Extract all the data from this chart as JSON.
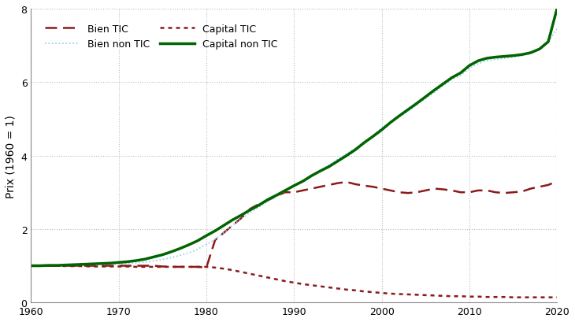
{
  "years": [
    1960,
    1961,
    1962,
    1963,
    1964,
    1965,
    1966,
    1967,
    1968,
    1969,
    1970,
    1971,
    1972,
    1973,
    1974,
    1975,
    1976,
    1977,
    1978,
    1979,
    1980,
    1981,
    1982,
    1983,
    1984,
    1985,
    1986,
    1987,
    1988,
    1989,
    1990,
    1991,
    1992,
    1993,
    1994,
    1995,
    1996,
    1997,
    1998,
    1999,
    2000,
    2001,
    2002,
    2003,
    2004,
    2005,
    2006,
    2007,
    2008,
    2009,
    2010,
    2011,
    2012,
    2013,
    2014,
    2015,
    2016,
    2017,
    2018,
    2019,
    2020
  ],
  "bien_TIC": [
    1.0,
    1.0,
    1.0,
    1.0,
    1.0,
    1.0,
    1.0,
    1.0,
    1.0,
    1.0,
    1.0,
    1.0,
    1.0,
    1.0,
    1.0,
    0.98,
    0.97,
    0.97,
    0.97,
    0.97,
    0.95,
    1.7,
    1.9,
    2.1,
    2.3,
    2.55,
    2.68,
    2.78,
    2.9,
    3.0,
    3.0,
    3.05,
    3.1,
    3.15,
    3.2,
    3.25,
    3.28,
    3.22,
    3.18,
    3.15,
    3.1,
    3.05,
    3.0,
    2.98,
    3.0,
    3.05,
    3.1,
    3.08,
    3.05,
    3.0,
    3.0,
    3.05,
    3.05,
    3.0,
    2.98,
    3.0,
    3.02,
    3.1,
    3.15,
    3.2,
    3.3
  ],
  "bien_non_TIC": [
    1.0,
    1.0,
    1.01,
    1.01,
    1.01,
    1.02,
    1.02,
    1.02,
    1.03,
    1.04,
    1.05,
    1.06,
    1.08,
    1.1,
    1.13,
    1.17,
    1.22,
    1.28,
    1.35,
    1.45,
    1.58,
    1.72,
    1.9,
    2.1,
    2.28,
    2.45,
    2.6,
    2.75,
    2.88,
    3.02,
    3.18,
    3.32,
    3.48,
    3.6,
    3.75,
    3.9,
    4.05,
    4.2,
    4.38,
    4.55,
    4.75,
    4.9,
    5.05,
    5.2,
    5.38,
    5.55,
    5.72,
    5.9,
    6.08,
    6.18,
    6.38,
    6.5,
    6.58,
    6.62,
    6.65,
    6.68,
    6.72,
    6.78,
    6.9,
    7.1,
    7.45
  ],
  "capital_TIC": [
    1.0,
    1.0,
    1.0,
    1.0,
    0.99,
    0.99,
    0.99,
    0.98,
    0.98,
    0.98,
    0.98,
    0.98,
    0.97,
    0.97,
    0.97,
    0.97,
    0.97,
    0.97,
    0.97,
    0.97,
    0.97,
    0.95,
    0.92,
    0.88,
    0.83,
    0.78,
    0.73,
    0.68,
    0.63,
    0.58,
    0.54,
    0.5,
    0.47,
    0.44,
    0.41,
    0.38,
    0.35,
    0.33,
    0.3,
    0.28,
    0.26,
    0.24,
    0.23,
    0.22,
    0.21,
    0.2,
    0.19,
    0.18,
    0.17,
    0.17,
    0.16,
    0.16,
    0.15,
    0.15,
    0.15,
    0.14,
    0.14,
    0.14,
    0.14,
    0.14,
    0.14
  ],
  "capital_non_TIC": [
    1.0,
    1.0,
    1.01,
    1.01,
    1.02,
    1.03,
    1.04,
    1.05,
    1.06,
    1.07,
    1.09,
    1.11,
    1.14,
    1.18,
    1.24,
    1.3,
    1.38,
    1.47,
    1.57,
    1.68,
    1.82,
    1.95,
    2.1,
    2.25,
    2.38,
    2.52,
    2.65,
    2.8,
    2.92,
    3.05,
    3.18,
    3.3,
    3.45,
    3.58,
    3.7,
    3.85,
    4.0,
    4.16,
    4.35,
    4.52,
    4.7,
    4.9,
    5.08,
    5.25,
    5.42,
    5.6,
    5.78,
    5.95,
    6.12,
    6.25,
    6.45,
    6.58,
    6.65,
    6.68,
    6.7,
    6.72,
    6.75,
    6.8,
    6.9,
    7.1,
    8.0
  ],
  "color_bien_TIC": "#8B1A1A",
  "color_bien_non_TIC": "#87CEEB",
  "color_capital_TIC": "#8B1A1A",
  "color_capital_non_TIC": "#006400",
  "ylabel": "Prix (1960 = 1)",
  "xlim": [
    1960,
    2020
  ],
  "ylim": [
    0,
    8
  ],
  "yticks": [
    0,
    2,
    4,
    6,
    8
  ],
  "xticks": [
    1960,
    1970,
    1980,
    1990,
    2000,
    2010,
    2020
  ],
  "grid_color": "#AAAAAA",
  "background_color": "#FFFFFF"
}
